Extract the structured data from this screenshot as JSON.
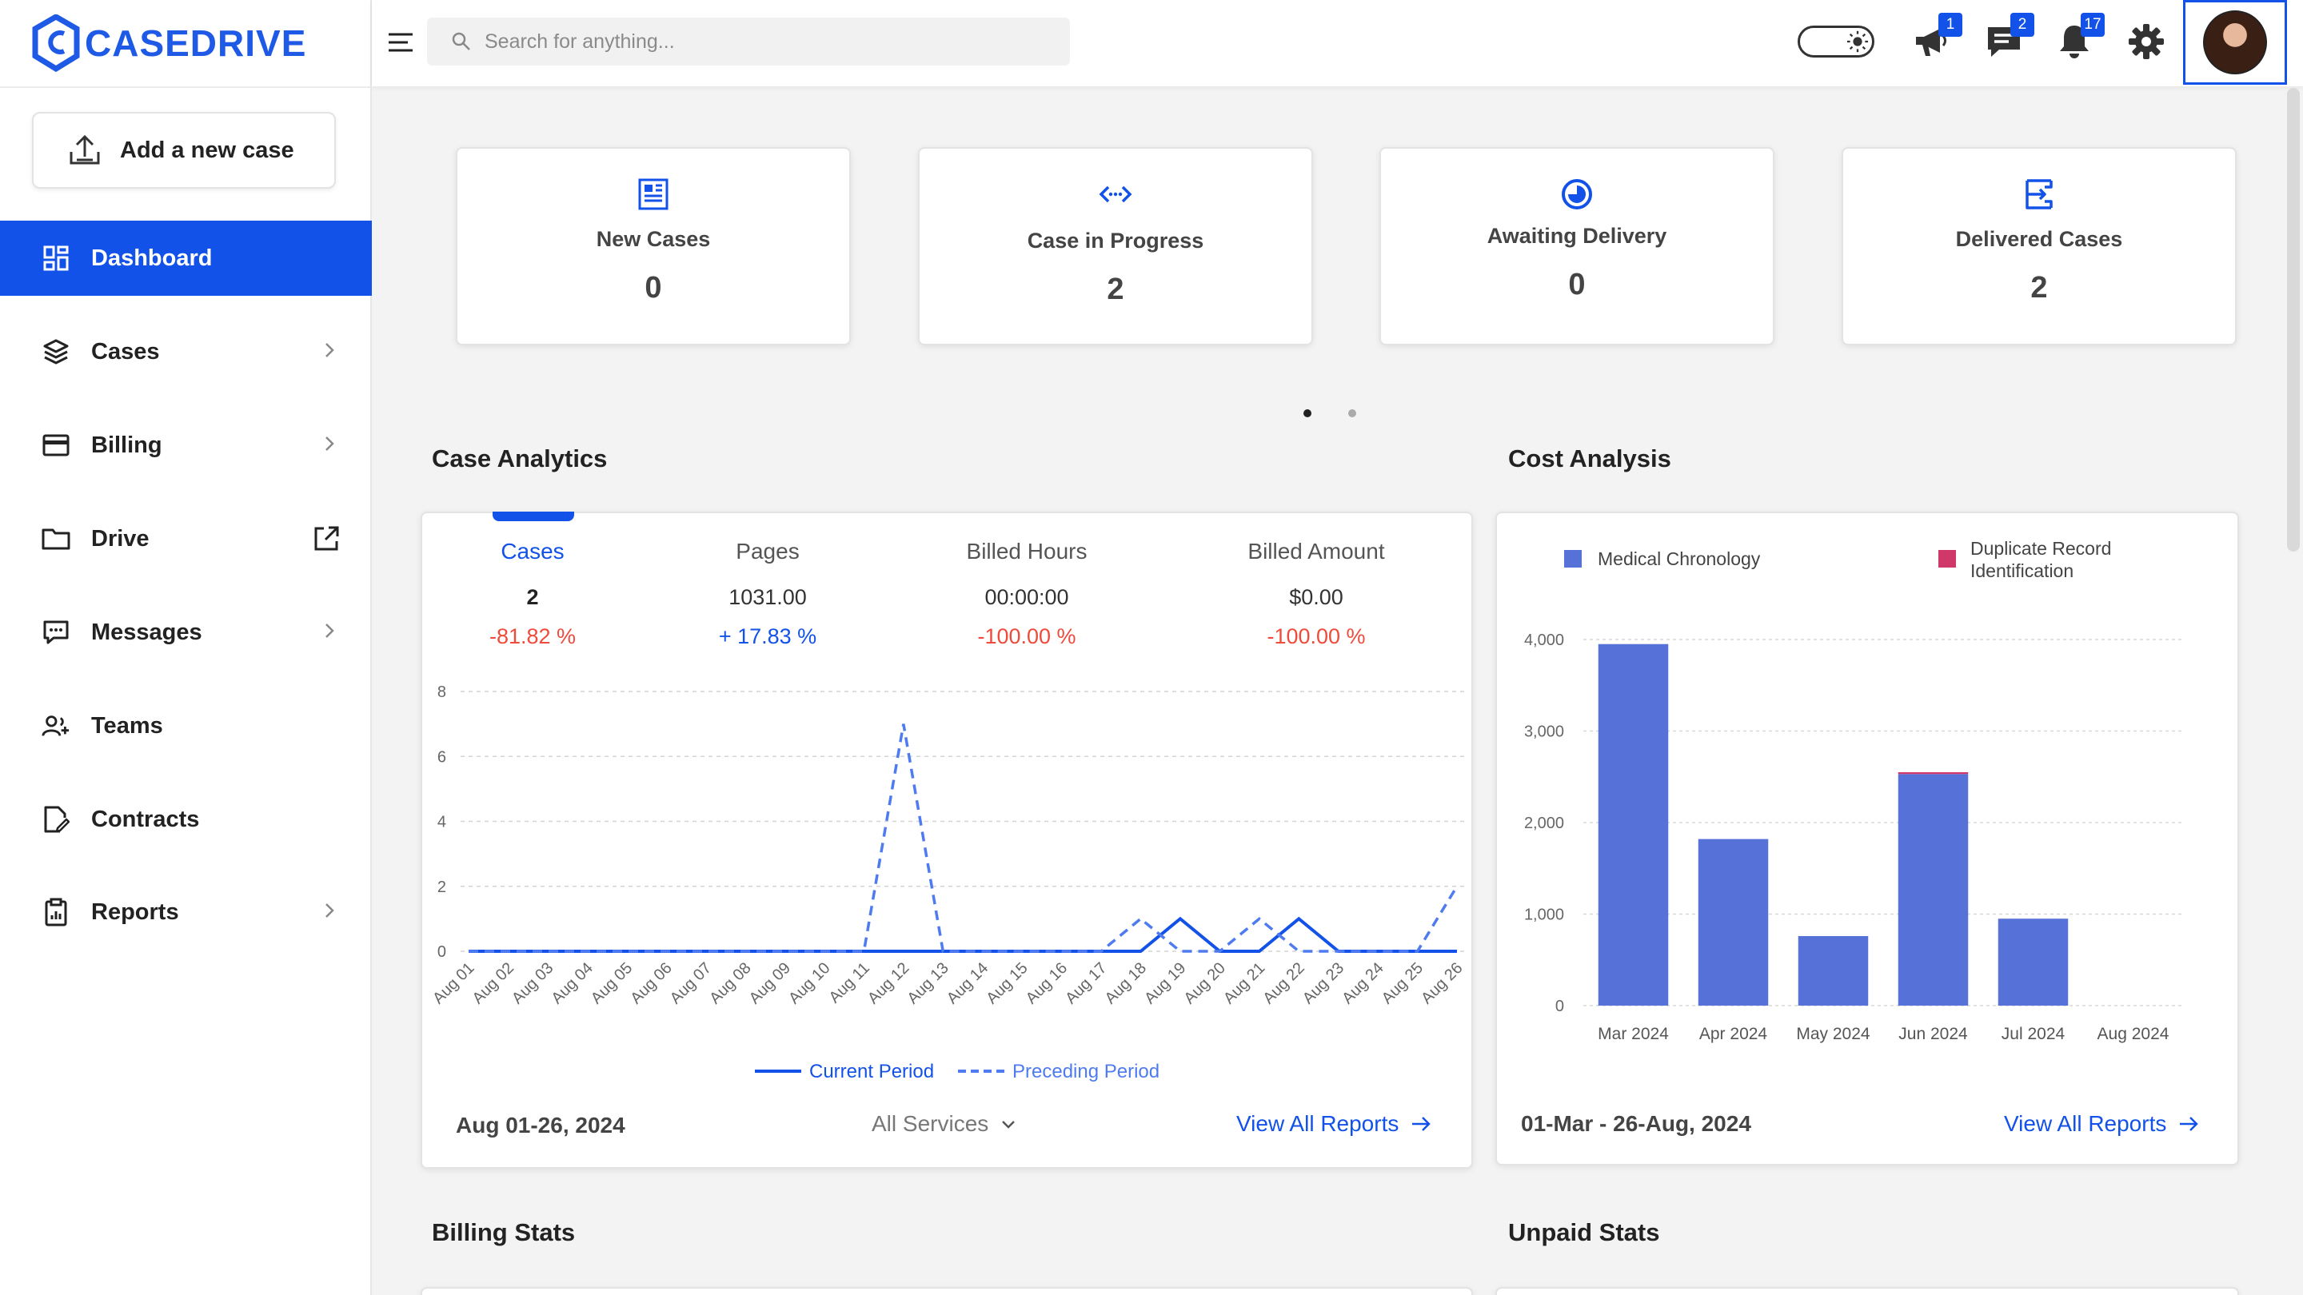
{
  "brand": {
    "name": "CASEDRIVE",
    "color": "#1f5ae6"
  },
  "sidebar": {
    "add_case_label": "Add a new case",
    "items": [
      {
        "label": "Dashboard",
        "icon": "dashboard-icon",
        "active": true
      },
      {
        "label": "Cases",
        "icon": "layers-icon",
        "chevron": true
      },
      {
        "label": "Billing",
        "icon": "credit-card-icon",
        "chevron": true
      },
      {
        "label": "Drive",
        "icon": "folder-icon",
        "external": true
      },
      {
        "label": "Messages",
        "icon": "message-icon",
        "chevron": true
      },
      {
        "label": "Teams",
        "icon": "team-icon"
      },
      {
        "label": "Contracts",
        "icon": "contract-icon"
      },
      {
        "label": "Reports",
        "icon": "clipboard-icon",
        "chevron": true
      }
    ]
  },
  "topbar": {
    "search_placeholder": "Search for anything...",
    "badges": {
      "announcements": "1",
      "messages": "2",
      "notifications": "17"
    }
  },
  "stats": [
    {
      "label": "New Cases",
      "value": "0",
      "icon": "newspaper-icon"
    },
    {
      "label": "Case in Progress",
      "value": "2",
      "icon": "code-arrows-icon"
    },
    {
      "label": "Awaiting Delivery",
      "value": "0",
      "icon": "clock-circle-icon"
    },
    {
      "label": "Delivered Cases",
      "value": "2",
      "icon": "delivered-icon"
    }
  ],
  "case_analytics": {
    "title": "Case Analytics",
    "metrics": [
      {
        "label": "Cases",
        "value": "2",
        "change": "-81.82 %",
        "trend": "neg",
        "selected": true
      },
      {
        "label": "Pages",
        "value": "1031.00",
        "change": "+ 17.83 %",
        "trend": "pos"
      },
      {
        "label": "Billed Hours",
        "value": "00:00:00",
        "change": "-100.00 %",
        "trend": "neg"
      },
      {
        "label": "Billed Amount",
        "value": "$0.00",
        "change": "-100.00 %",
        "trend": "neg"
      }
    ],
    "date_range": "Aug 01-26, 2024",
    "services_filter": "All Services",
    "view_all": "View All Reports"
  },
  "cost_analysis": {
    "title": "Cost Analysis",
    "date_range": "01-Mar - 26-Aug, 2024",
    "view_all": "View All Reports"
  },
  "billing_stats_title": "Billing Stats",
  "unpaid_stats_title": "Unpaid Stats",
  "chart_data": [
    {
      "type": "line",
      "x": [
        "Aug 01",
        "Aug 02",
        "Aug 03",
        "Aug 04",
        "Aug 05",
        "Aug 06",
        "Aug 07",
        "Aug 08",
        "Aug 09",
        "Aug 10",
        "Aug 11",
        "Aug 12",
        "Aug 13",
        "Aug 14",
        "Aug 15",
        "Aug 16",
        "Aug 17",
        "Aug 18",
        "Aug 19",
        "Aug 20",
        "Aug 21",
        "Aug 22",
        "Aug 23",
        "Aug 24",
        "Aug 25",
        "Aug 26"
      ],
      "yticks": [
        "0",
        "2",
        "4",
        "6",
        "8"
      ],
      "ylim": [
        0,
        8
      ],
      "series": [
        {
          "name": "Current Period",
          "style": "solid",
          "color": "#1352e8",
          "values": [
            0,
            0,
            0,
            0,
            0,
            0,
            0,
            0,
            0,
            0,
            0,
            0,
            0,
            0,
            0,
            0,
            0,
            0,
            1,
            0,
            0,
            1,
            0,
            0,
            0,
            0
          ]
        },
        {
          "name": "Preceding Period",
          "style": "dashed",
          "color": "#4f7bf0",
          "values": [
            0,
            0,
            0,
            0,
            0,
            0,
            0,
            0,
            0,
            0,
            0,
            7,
            0,
            0,
            0,
            0,
            0,
            1,
            0,
            0,
            1,
            0,
            0,
            0,
            0,
            2
          ]
        }
      ],
      "legend": "bottom"
    },
    {
      "type": "bar",
      "categories": [
        "Mar 2024",
        "Apr 2024",
        "May 2024",
        "Jun 2024",
        "Jul 2024",
        "Aug 2024"
      ],
      "yticks": [
        "0",
        "1,000",
        "2,000",
        "3,000",
        "4,000"
      ],
      "ylim": [
        0,
        4000
      ],
      "series": [
        {
          "name": "Medical Chronology",
          "color": "#5672d9",
          "values": [
            3950,
            1820,
            760,
            2530,
            950,
            0
          ]
        },
        {
          "name": "Duplicate Record Identification",
          "color": "#d0386a",
          "values": [
            0,
            0,
            0,
            20,
            0,
            0
          ]
        }
      ],
      "legend": "top"
    }
  ]
}
